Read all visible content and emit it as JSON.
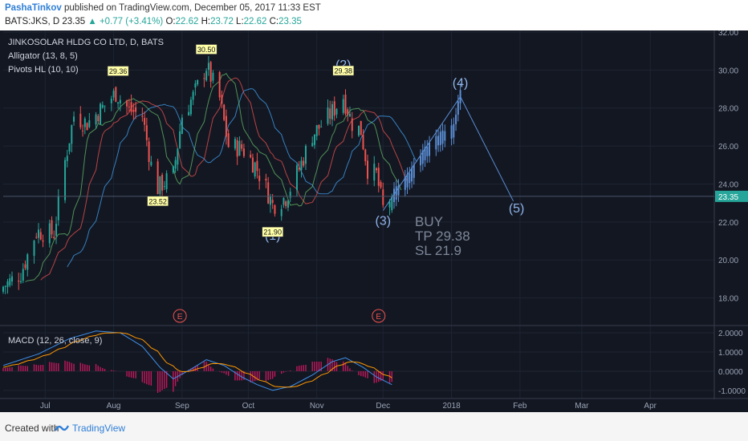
{
  "header": {
    "author": "PashaTinkov",
    "published_text": " published on TradingView.com, December 05, 2017 11:33 EST",
    "symbol": "BATS:JKS, D",
    "last": "23.35",
    "change": "+0.77 (+3.41%)",
    "open_label": "O:",
    "open": "22.62",
    "high_label": "H:",
    "high": "23.72",
    "low_label": "L:",
    "low": "22.62",
    "close_label": "C:",
    "close": "23.35"
  },
  "legend": {
    "title": "JINKOSOLAR HLDG CO LTD, D, BATS",
    "alligator": "Alligator (13, 8, 5)",
    "pivots": "Pivots HL (10, 10)",
    "macd": "MACD (12, 26, close, 9)"
  },
  "annotations": {
    "wave1": "(1)",
    "wave2": "(2)",
    "wave3": "(3)",
    "wave4": "(4)",
    "wave5": "(5)",
    "buy": "BUY",
    "tp": "TP 29.38",
    "sl": "SL 21.9",
    "earnings": "E"
  },
  "footer": {
    "created": "Created with",
    "brand": "TradingView"
  },
  "colors": {
    "background": "#131722",
    "up": "#26a69a",
    "down": "#ef5350",
    "forecast": "#5b8fd6",
    "lips": "#66bb6a",
    "teeth": "#ef5350",
    "jaw": "#42a5f5",
    "macd": "#3f8fe8",
    "signal": "#ff9800",
    "histogram": "#c2185b"
  },
  "chart_data": {
    "type": "candlestick",
    "price_axis_ticks": [
      "18.00",
      "20.00",
      "22.00",
      "24.00",
      "26.00",
      "28.00",
      "30.00",
      "32.00"
    ],
    "price_range": [
      16.8,
      32.0
    ],
    "last_price": "23.35",
    "x_ticks": [
      "Jul",
      "Aug",
      "Sep",
      "Oct",
      "Nov",
      "Dec",
      "2018",
      "Feb",
      "Mar",
      "Apr"
    ],
    "pivot_labels": [
      {
        "text": "29.36",
        "kind": "high",
        "value": 29.36,
        "date": "2017-08-03"
      },
      {
        "text": "23.52",
        "kind": "low",
        "value": 23.52,
        "date": "2017-08-21"
      },
      {
        "text": "30.50",
        "kind": "high",
        "value": 30.5,
        "date": "2017-09-12"
      },
      {
        "text": "21.90",
        "kind": "low",
        "value": 21.9,
        "date": "2017-10-12"
      },
      {
        "text": "29.38",
        "kind": "high",
        "value": 29.38,
        "date": "2017-11-13"
      }
    ],
    "waves": [
      {
        "label": "(1)",
        "date": "2017-10-12",
        "value": 21.9
      },
      {
        "label": "(2)",
        "date": "2017-11-13",
        "value": 29.38
      },
      {
        "label": "(3)",
        "date": "2017-12-01",
        "value": 22.6
      },
      {
        "label": "(4)",
        "date": "2018-01-05",
        "value": 28.6
      },
      {
        "label": "(5)",
        "date": "2018-01-29",
        "value": 23.1
      }
    ],
    "earnings_dates": [
      "2017-08-31",
      "2017-11-29"
    ],
    "anchors": [
      [
        "2017-06-12",
        18.6
      ],
      [
        "2017-06-20",
        19.3
      ],
      [
        "2017-06-27",
        21.5
      ],
      [
        "2017-07-05",
        21.4
      ],
      [
        "2017-07-10",
        25.2
      ],
      [
        "2017-07-14",
        27.6
      ],
      [
        "2017-07-20",
        27.2
      ],
      [
        "2017-07-26",
        27.9
      ],
      [
        "2017-08-02",
        28.8
      ],
      [
        "2017-08-08",
        27.9
      ],
      [
        "2017-08-14",
        27.6
      ],
      [
        "2017-08-18",
        25.0
      ],
      [
        "2017-08-21",
        23.8
      ],
      [
        "2017-08-28",
        24.5
      ],
      [
        "2017-09-01",
        27.6
      ],
      [
        "2017-09-06",
        28.6
      ],
      [
        "2017-09-12",
        30.2
      ],
      [
        "2017-09-18",
        28.5
      ],
      [
        "2017-09-22",
        26.0
      ],
      [
        "2017-09-28",
        25.9
      ],
      [
        "2017-10-04",
        25.0
      ],
      [
        "2017-10-09",
        23.8
      ],
      [
        "2017-10-12",
        22.9
      ],
      [
        "2017-10-18",
        23.3
      ],
      [
        "2017-10-24",
        24.8
      ],
      [
        "2017-10-30",
        26.6
      ],
      [
        "2017-11-03",
        27.1
      ],
      [
        "2017-11-08",
        27.8
      ],
      [
        "2017-11-13",
        28.6
      ],
      [
        "2017-11-17",
        27.2
      ],
      [
        "2017-11-21",
        26.8
      ],
      [
        "2017-11-24",
        24.8
      ],
      [
        "2017-11-28",
        24.5
      ],
      [
        "2017-12-01",
        22.7
      ],
      [
        "2017-12-05",
        23.35
      ]
    ],
    "forecast_anchors": [
      [
        "2017-12-06",
        23.4
      ],
      [
        "2017-12-13",
        24.3
      ],
      [
        "2017-12-20",
        25.6
      ],
      [
        "2017-12-27",
        26.4
      ],
      [
        "2018-01-02",
        26.8
      ],
      [
        "2018-01-05",
        28.6
      ]
    ],
    "macd_axis_ticks": [
      "2.0000",
      "1.0000",
      "0.0000",
      "-1.0000"
    ],
    "macd_range": [
      -1.3,
      2.3
    ],
    "macd_anchors": [
      [
        "2017-06-12",
        0.3
      ],
      [
        "2017-06-28",
        0.9
      ],
      [
        "2017-07-12",
        1.7
      ],
      [
        "2017-07-24",
        2.1
      ],
      [
        "2017-08-04",
        2.0
      ],
      [
        "2017-08-14",
        1.3
      ],
      [
        "2017-08-22",
        0.2
      ],
      [
        "2017-08-28",
        -0.4
      ],
      [
        "2017-09-05",
        0.1
      ],
      [
        "2017-09-12",
        0.6
      ],
      [
        "2017-09-20",
        0.3
      ],
      [
        "2017-09-28",
        -0.3
      ],
      [
        "2017-10-05",
        -0.7
      ],
      [
        "2017-10-12",
        -1.0
      ],
      [
        "2017-10-20",
        -0.8
      ],
      [
        "2017-10-30",
        -0.2
      ],
      [
        "2017-11-08",
        0.5
      ],
      [
        "2017-11-14",
        0.7
      ],
      [
        "2017-11-22",
        0.2
      ],
      [
        "2017-11-28",
        -0.3
      ],
      [
        "2017-12-05",
        -0.7
      ]
    ]
  }
}
